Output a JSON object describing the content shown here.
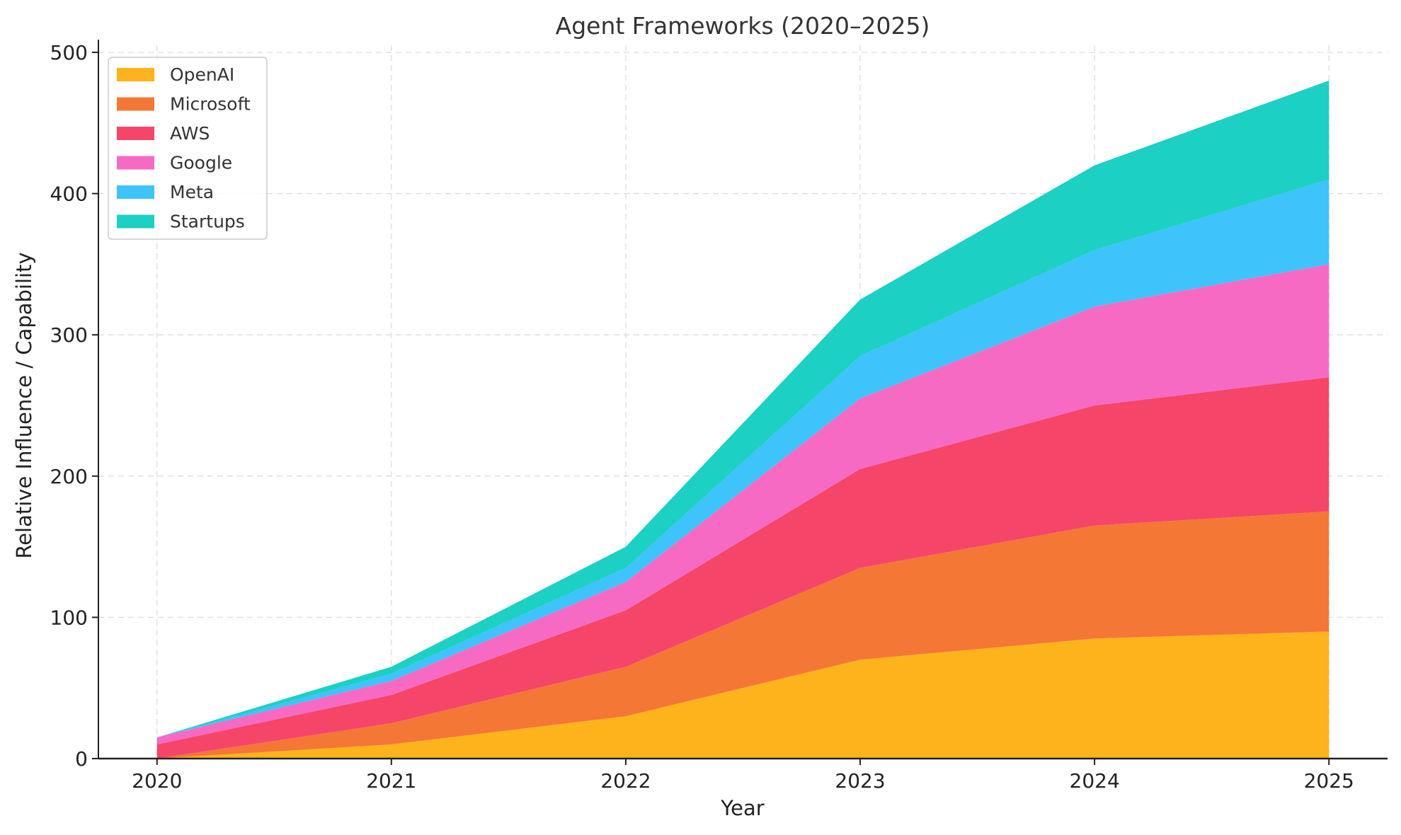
{
  "chart_data": {
    "type": "area",
    "stacked": true,
    "title": "Agent Frameworks (2020–2025)",
    "xlabel": "Year",
    "ylabel": "Relative Influence / Capability",
    "x": [
      2020,
      2021,
      2022,
      2023,
      2024,
      2025
    ],
    "xticks": [
      "2020",
      "2021",
      "2022",
      "2023",
      "2024",
      "2025"
    ],
    "yticks": [
      "0",
      "100",
      "200",
      "300",
      "400",
      "500"
    ],
    "ytick_values": [
      0,
      100,
      200,
      300,
      400,
      500
    ],
    "ylim": [
      0,
      505
    ],
    "xlim": [
      2019.75,
      2025.25
    ],
    "grid": true,
    "legend_position": "top-left",
    "series": [
      {
        "name": "OpenAI",
        "color": "#fdb31b",
        "values": [
          0,
          10,
          30,
          70,
          85,
          90
        ]
      },
      {
        "name": "Microsoft",
        "color": "#f47736",
        "values": [
          0,
          15,
          35,
          65,
          80,
          85
        ]
      },
      {
        "name": "AWS",
        "color": "#f54568",
        "values": [
          10,
          20,
          40,
          70,
          85,
          95
        ]
      },
      {
        "name": "Google",
        "color": "#f76ac4",
        "values": [
          5,
          10,
          20,
          50,
          70,
          80
        ]
      },
      {
        "name": "Meta",
        "color": "#3ec3fb",
        "values": [
          0,
          5,
          10,
          30,
          40,
          60
        ]
      },
      {
        "name": "Startups",
        "color": "#1cd0c3",
        "values": [
          0,
          5,
          15,
          40,
          60,
          70
        ]
      }
    ]
  }
}
